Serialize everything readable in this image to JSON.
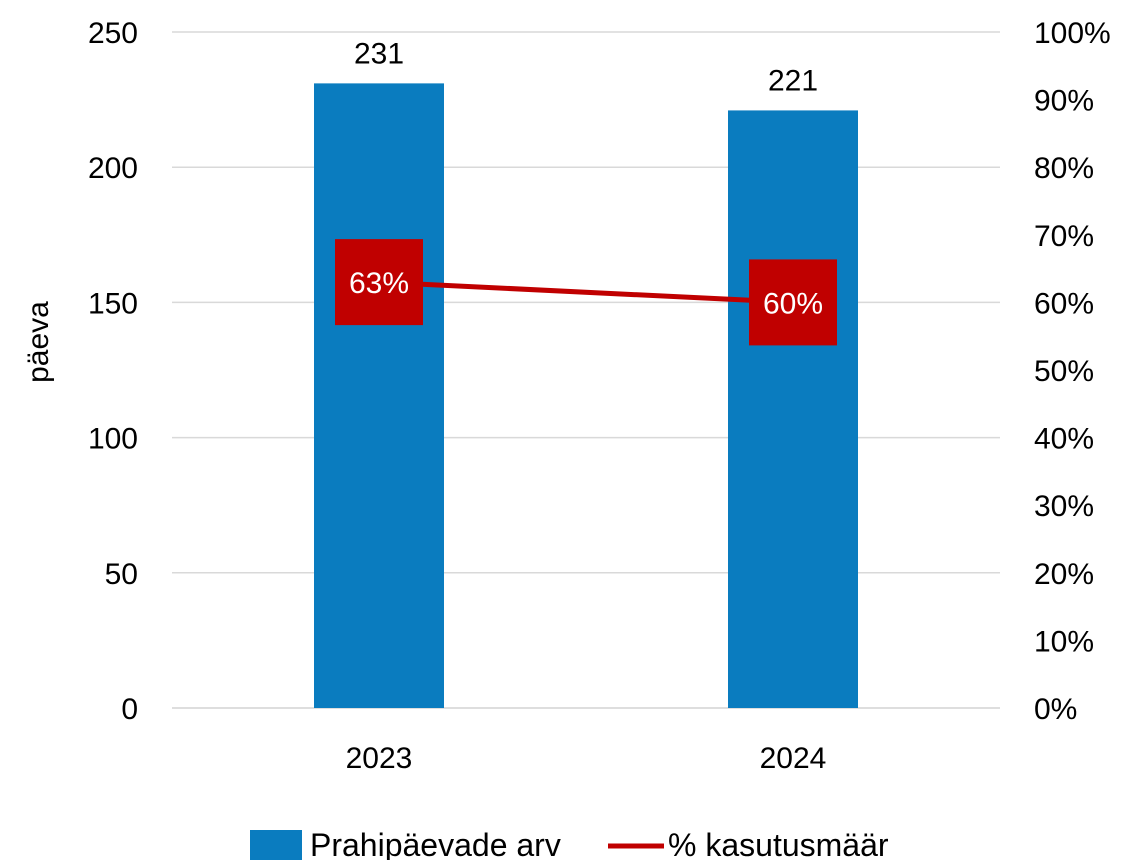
{
  "chart_data": {
    "type": "bar",
    "categories": [
      "2023",
      "2024"
    ],
    "ylabel": "päeva",
    "ylim": [
      0,
      250
    ],
    "yticks": [
      "0",
      "50",
      "100",
      "150",
      "200",
      "250"
    ],
    "y2lim": [
      0,
      100
    ],
    "y2ticks": [
      "0%",
      "10%",
      "20%",
      "30%",
      "40%",
      "50%",
      "60%",
      "70%",
      "80%",
      "90%",
      "100%"
    ],
    "grid": true,
    "legend_position": "bottom",
    "series": [
      {
        "name": "Prahipäevade arv",
        "type": "bar",
        "axis": "left",
        "color": "#0A7CBF",
        "values": [
          231,
          221
        ],
        "labels": [
          "231",
          "221"
        ]
      },
      {
        "name": "% kasutusmäär",
        "type": "line",
        "axis": "right",
        "color": "#C00000",
        "values": [
          63,
          60
        ],
        "labels": [
          "63%",
          "60%"
        ]
      }
    ]
  }
}
